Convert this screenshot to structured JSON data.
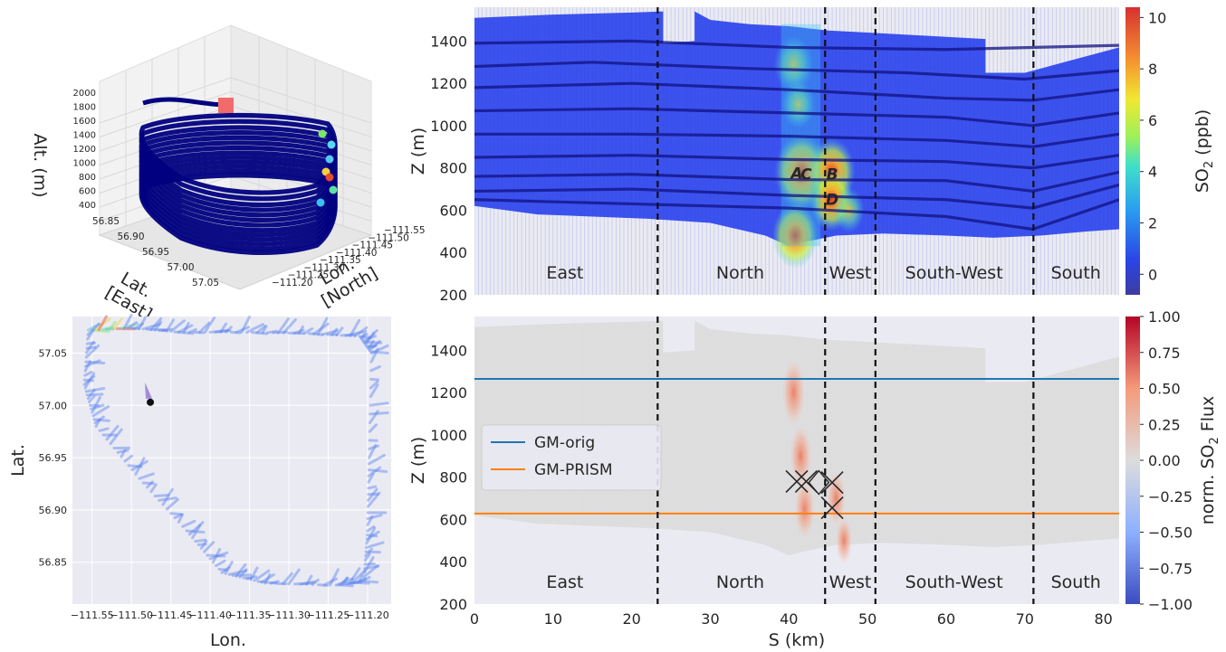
{
  "chart_data": [
    {
      "type": "line",
      "panel": "3d-flight-track",
      "xlabel_lines": [
        "Lat.",
        "[East]"
      ],
      "ylabel_lines": [
        "Lon.",
        "[North]"
      ],
      "zlabel": "Alt. (m)",
      "lat_ticks": [
        "56.85",
        "56.90",
        "56.95",
        "57.00",
        "57.05"
      ],
      "lon_ticks": [
        "−111.55",
        "−111.50",
        "−111.45",
        "−111.40",
        "−111.35",
        "−111.30",
        "−111.25",
        "−111.20"
      ],
      "alt_ticks": [
        "2000",
        "1800",
        "1600",
        "1400",
        "1200",
        "1000",
        "800",
        "600",
        "400"
      ],
      "zlim": [
        400,
        2000
      ],
      "track_color": "#000080",
      "start_marker_color": "#f26b6b",
      "laps_altitude_m": [
        1700,
        1580,
        1460,
        1360,
        1260,
        1160,
        1060,
        960,
        870,
        780,
        690,
        600,
        520
      ]
    },
    {
      "type": "scatter",
      "panel": "wind-vectors-map",
      "xlabel": "Lon.",
      "ylabel": "Lat.",
      "xticks": [
        "−111.55",
        "−111.50",
        "−111.45",
        "−111.40",
        "−111.35",
        "−111.30",
        "−111.25",
        "−111.20"
      ],
      "yticks": [
        "57.05",
        "57.00",
        "56.95",
        "56.90",
        "56.85"
      ],
      "xlim": [
        -111.575,
        -111.17
      ],
      "ylim": [
        56.81,
        57.085
      ],
      "track_path": [
        [
          -111.555,
          57.072
        ],
        [
          -111.5,
          57.074
        ],
        [
          -111.44,
          57.07
        ],
        [
          -111.36,
          57.07
        ],
        [
          -111.28,
          57.069
        ],
        [
          -111.21,
          57.066
        ],
        [
          -111.195,
          57.05
        ],
        [
          -111.198,
          56.95
        ],
        [
          -111.2,
          56.88
        ],
        [
          -111.205,
          56.832
        ],
        [
          -111.24,
          56.828
        ],
        [
          -111.33,
          56.83
        ],
        [
          -111.385,
          56.84
        ],
        [
          -111.43,
          56.88
        ],
        [
          -111.49,
          56.93
        ],
        [
          -111.545,
          56.98
        ],
        [
          -111.56,
          57.02
        ],
        [
          -111.555,
          57.072
        ]
      ],
      "source_point": [
        -111.476,
        57.003
      ],
      "vector_color": "#5b84f0"
    },
    {
      "type": "heatmap",
      "panel": "so2-curtain",
      "xlabel": "S (km)",
      "ylabel": "Z (m)",
      "xlim": [
        0,
        82
      ],
      "ylim": [
        200,
        1560
      ],
      "yticks": [
        200,
        400,
        600,
        800,
        1000,
        1200,
        1400
      ],
      "colorbar_label": "SO",
      "colorbar_sub": "2",
      "colorbar_unit": " (ppb)",
      "colorbar_ticks": [
        0,
        2,
        4,
        6,
        8,
        10
      ],
      "colorbar_tick_labels": [
        "0",
        "2",
        "4",
        "6",
        "8",
        "10"
      ],
      "colorbar_range": [
        -0.8,
        10.4
      ],
      "segment_boundaries_km": [
        23.3,
        44.6,
        51.0,
        71.1
      ],
      "segments": [
        {
          "label": "East",
          "x_km": 11.5
        },
        {
          "label": "North",
          "x_km": 33.8
        },
        {
          "label": "West",
          "x_km": 47.8
        },
        {
          "label": "South-West",
          "x_km": 61.0
        },
        {
          "label": "South",
          "x_km": 76.5
        }
      ],
      "point_labels": [
        {
          "label": "A",
          "s_km": 41.0,
          "z_m": 780
        },
        {
          "label": "C",
          "s_km": 42.2,
          "z_m": 775
        },
        {
          "label": "B",
          "s_km": 45.5,
          "z_m": 775
        },
        {
          "label": "D",
          "s_km": 45.5,
          "z_m": 655
        }
      ],
      "top_of_curtain": [
        [
          0,
          1510
        ],
        [
          10,
          1525
        ],
        [
          20,
          1535
        ],
        [
          24,
          1540
        ],
        [
          24,
          1390
        ],
        [
          28,
          1400
        ],
        [
          28,
          1540
        ],
        [
          30,
          1500
        ],
        [
          35,
          1480
        ],
        [
          40,
          1470
        ],
        [
          45,
          1450
        ],
        [
          50,
          1440
        ],
        [
          55,
          1430
        ],
        [
          60,
          1420
        ],
        [
          65,
          1410
        ],
        [
          65,
          1250
        ],
        [
          70,
          1250
        ],
        [
          75,
          1300
        ],
        [
          80,
          1350
        ],
        [
          82,
          1370
        ]
      ],
      "bottom_of_curtain": [
        [
          0,
          620
        ],
        [
          8,
          580
        ],
        [
          15,
          570
        ],
        [
          22,
          560
        ],
        [
          30,
          540
        ],
        [
          37,
          480
        ],
        [
          40,
          430
        ],
        [
          42,
          450
        ],
        [
          46,
          480
        ],
        [
          52,
          490
        ],
        [
          60,
          480
        ],
        [
          66,
          470
        ],
        [
          72,
          480
        ],
        [
          78,
          500
        ],
        [
          82,
          510
        ]
      ],
      "flight_level_lines": [
        [
          [
            0,
            1390
          ],
          [
            20,
            1400
          ],
          [
            40,
            1370
          ],
          [
            60,
            1360
          ],
          [
            82,
            1380
          ]
        ],
        [
          [
            0,
            1280
          ],
          [
            15,
            1300
          ],
          [
            35,
            1270
          ],
          [
            55,
            1250
          ],
          [
            70,
            1220
          ],
          [
            82,
            1260
          ]
        ],
        [
          [
            0,
            1180
          ],
          [
            20,
            1200
          ],
          [
            40,
            1170
          ],
          [
            60,
            1130
          ],
          [
            71,
            1120
          ],
          [
            82,
            1170
          ]
        ],
        [
          [
            0,
            1070
          ],
          [
            20,
            1080
          ],
          [
            40,
            1060
          ],
          [
            60,
            1040
          ],
          [
            71,
            1000
          ],
          [
            82,
            1060
          ]
        ],
        [
          [
            0,
            960
          ],
          [
            20,
            960
          ],
          [
            40,
            950
          ],
          [
            60,
            930
          ],
          [
            71,
            900
          ],
          [
            82,
            960
          ]
        ],
        [
          [
            0,
            850
          ],
          [
            20,
            860
          ],
          [
            40,
            840
          ],
          [
            60,
            830
          ],
          [
            71,
            800
          ],
          [
            82,
            860
          ]
        ],
        [
          [
            0,
            760
          ],
          [
            20,
            770
          ],
          [
            40,
            745
          ],
          [
            60,
            740
          ],
          [
            71,
            690
          ],
          [
            82,
            780
          ]
        ],
        [
          [
            0,
            690
          ],
          [
            20,
            700
          ],
          [
            40,
            670
          ],
          [
            60,
            650
          ],
          [
            71,
            610
          ],
          [
            82,
            720
          ]
        ],
        [
          [
            0,
            650
          ],
          [
            20,
            630
          ],
          [
            40,
            610
          ],
          [
            60,
            570
          ],
          [
            71,
            510
          ],
          [
            82,
            650
          ]
        ]
      ],
      "plume_hotspots": [
        {
          "s_km": 40.6,
          "z_m": 1290,
          "value": 6.0
        },
        {
          "s_km": 41.2,
          "z_m": 1100,
          "value": 4.5
        },
        {
          "s_km": 41.6,
          "z_m": 780,
          "value": 9.5
        },
        {
          "s_km": 45.4,
          "z_m": 780,
          "value": 8.0
        },
        {
          "s_km": 45.4,
          "z_m": 650,
          "value": 7.0
        },
        {
          "s_km": 40.8,
          "z_m": 480,
          "value": 7.5
        },
        {
          "s_km": 47.6,
          "z_m": 600,
          "value": 4.0
        }
      ]
    },
    {
      "type": "heatmap",
      "panel": "normalized-flux-curtain",
      "xlabel": "S (km)",
      "ylabel": "Z (m)",
      "xlim": [
        0,
        82
      ],
      "ylim": [
        200,
        1560
      ],
      "xticks": [
        0,
        10,
        20,
        30,
        40,
        50,
        60,
        70,
        80
      ],
      "yticks": [
        200,
        400,
        600,
        800,
        1000,
        1200,
        1400
      ],
      "colorbar_label": "norm. SO",
      "colorbar_sub": "2",
      "colorbar_unit": " Flux",
      "colorbar_ticks": [
        "1.00",
        "0.75",
        "0.50",
        "0.25",
        "0.00",
        "−0.25",
        "−0.50",
        "−0.75",
        "−1.00"
      ],
      "colorbar_range": [
        -1,
        1
      ],
      "segment_boundaries_km": [
        23.3,
        44.6,
        51.0,
        71.1
      ],
      "segments": [
        {
          "label": "East",
          "x_km": 11.5
        },
        {
          "label": "North",
          "x_km": 33.8
        },
        {
          "label": "West",
          "x_km": 47.8
        },
        {
          "label": "South-West",
          "x_km": 61.0
        },
        {
          "label": "South",
          "x_km": 76.5
        }
      ],
      "series": [
        {
          "name": "GM-orig",
          "y": 1265,
          "color": "#1f77b4"
        },
        {
          "name": "GM-PRISM",
          "y": 628,
          "color": "#ff7f0e"
        }
      ],
      "x_markers": [
        {
          "s_km": 41.0,
          "z_m": 780
        },
        {
          "s_km": 42.2,
          "z_m": 780
        },
        {
          "s_km": 45.5,
          "z_m": 775
        },
        {
          "s_km": 45.5,
          "z_m": 655
        }
      ],
      "diamond_marker": {
        "s_km": 43.8,
        "z_m": 775
      },
      "flux_hotspots": [
        {
          "s_km": 40.6,
          "z_m": 1200,
          "value": 0.55
        },
        {
          "s_km": 41.5,
          "z_m": 900,
          "value": 0.5
        },
        {
          "s_km": 42.0,
          "z_m": 650,
          "value": 0.45
        },
        {
          "s_km": 46.0,
          "z_m": 700,
          "value": 0.4
        },
        {
          "s_km": 47.0,
          "z_m": 500,
          "value": 0.3
        }
      ]
    }
  ]
}
